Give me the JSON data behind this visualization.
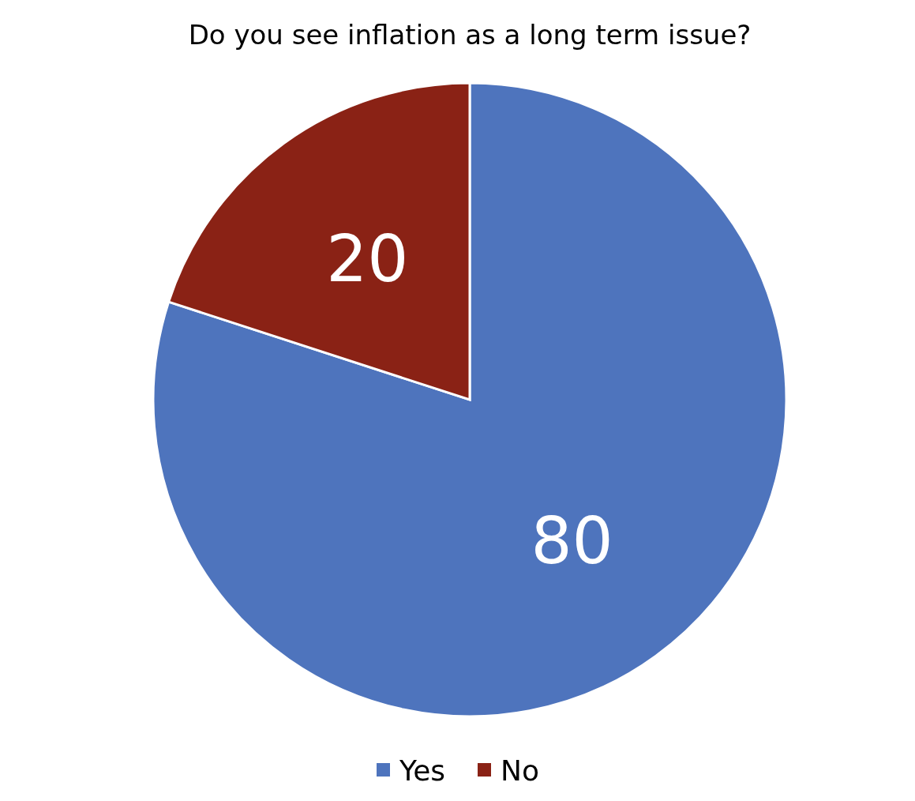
{
  "chart_data": {
    "type": "pie",
    "title": "Do you see inflation as a long term issue?",
    "categories": [
      "Yes",
      "No"
    ],
    "values": [
      80,
      20
    ],
    "colors": [
      "#4e74bd",
      "#8a2215"
    ],
    "data_labels": true,
    "legend": "bottom"
  }
}
